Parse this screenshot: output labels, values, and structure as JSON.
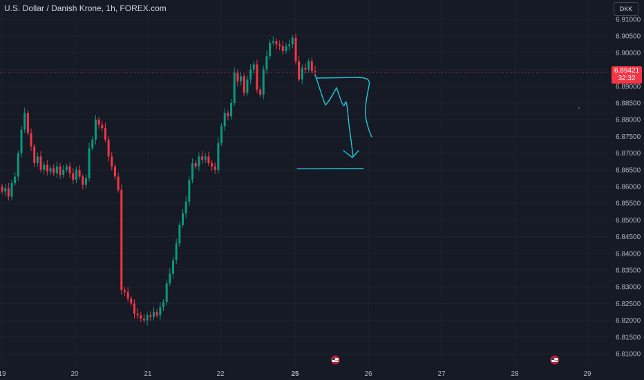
{
  "header": {
    "symbol_title": "U.S. Dollar / Danish Krone, 1h, FOREX.com",
    "currency_button": "DKK"
  },
  "last_price": {
    "value": "6.89421",
    "countdown": "32:32",
    "color": "#f23645"
  },
  "colors": {
    "background": "#161a25",
    "grid": "#1f2330",
    "up": "#089981",
    "down": "#f23645",
    "drawing": "#22c7d9",
    "axis_text": "#b2b5be"
  },
  "chart_data": {
    "type": "candlestick",
    "title": "U.S. Dollar / Danish Krone, 1h, FOREX.com",
    "ylim": [
      6.8055,
      6.9145
    ],
    "y_ticks": [
      "6.91000",
      "6.90500",
      "6.90000",
      "6.89500",
      "6.89000",
      "6.88500",
      "6.88000",
      "6.87500",
      "6.87000",
      "6.86500",
      "6.86000",
      "6.85500",
      "6.85000",
      "6.84500",
      "6.84000",
      "6.83500",
      "6.83000",
      "6.82500",
      "6.82000",
      "6.81500",
      "6.81000"
    ],
    "x_ticks": [
      "19",
      "20",
      "21",
      "22",
      "25",
      "26",
      "27",
      "28",
      "29"
    ],
    "x_tick_bold": "25",
    "grid": true,
    "closes": [
      6.8585,
      6.8595,
      6.857,
      6.861,
      6.863,
      6.87,
      6.877,
      6.882,
      6.876,
      6.872,
      6.867,
      6.869,
      6.865,
      6.8665,
      6.8645,
      6.8655,
      6.864,
      6.866,
      6.8635,
      6.865,
      6.866,
      6.864,
      6.862,
      6.865,
      6.863,
      6.8605,
      6.8625,
      6.8715,
      6.874,
      6.88,
      6.8785,
      6.8775,
      6.874,
      6.869,
      6.866,
      6.863,
      6.859,
      6.829,
      6.8285,
      6.8265,
      6.825,
      6.822,
      6.8215,
      6.8205,
      6.82,
      6.8215,
      6.821,
      6.8225,
      6.8215,
      6.824,
      6.8255,
      6.831,
      6.834,
      6.838,
      6.843,
      6.8485,
      6.852,
      6.8555,
      6.862,
      6.867,
      6.866,
      6.869,
      6.868,
      6.869,
      6.867,
      6.866,
      6.865,
      6.873,
      6.878,
      6.882,
      6.881,
      6.885,
      6.894,
      6.8915,
      6.893,
      6.888,
      6.892,
      6.895,
      6.8965,
      6.889,
      6.8875,
      6.895,
      6.899,
      6.903,
      6.9035,
      6.9025,
      6.902,
      6.9005,
      6.902,
      6.9025,
      6.9045,
      6.8975,
      6.892,
      6.8955,
      6.895,
      6.8975,
      6.8945,
      6.8942
    ],
    "events": [
      {
        "x": 25.55,
        "label": "US"
      },
      {
        "x": 28.55,
        "label": "US"
      }
    ],
    "annotations": [
      {
        "type": "arrow-path",
        "label": ""
      },
      {
        "type": "horizontal-line",
        "y": 6.8653,
        "x_start": 25.0,
        "x_end": 25.95
      }
    ]
  }
}
